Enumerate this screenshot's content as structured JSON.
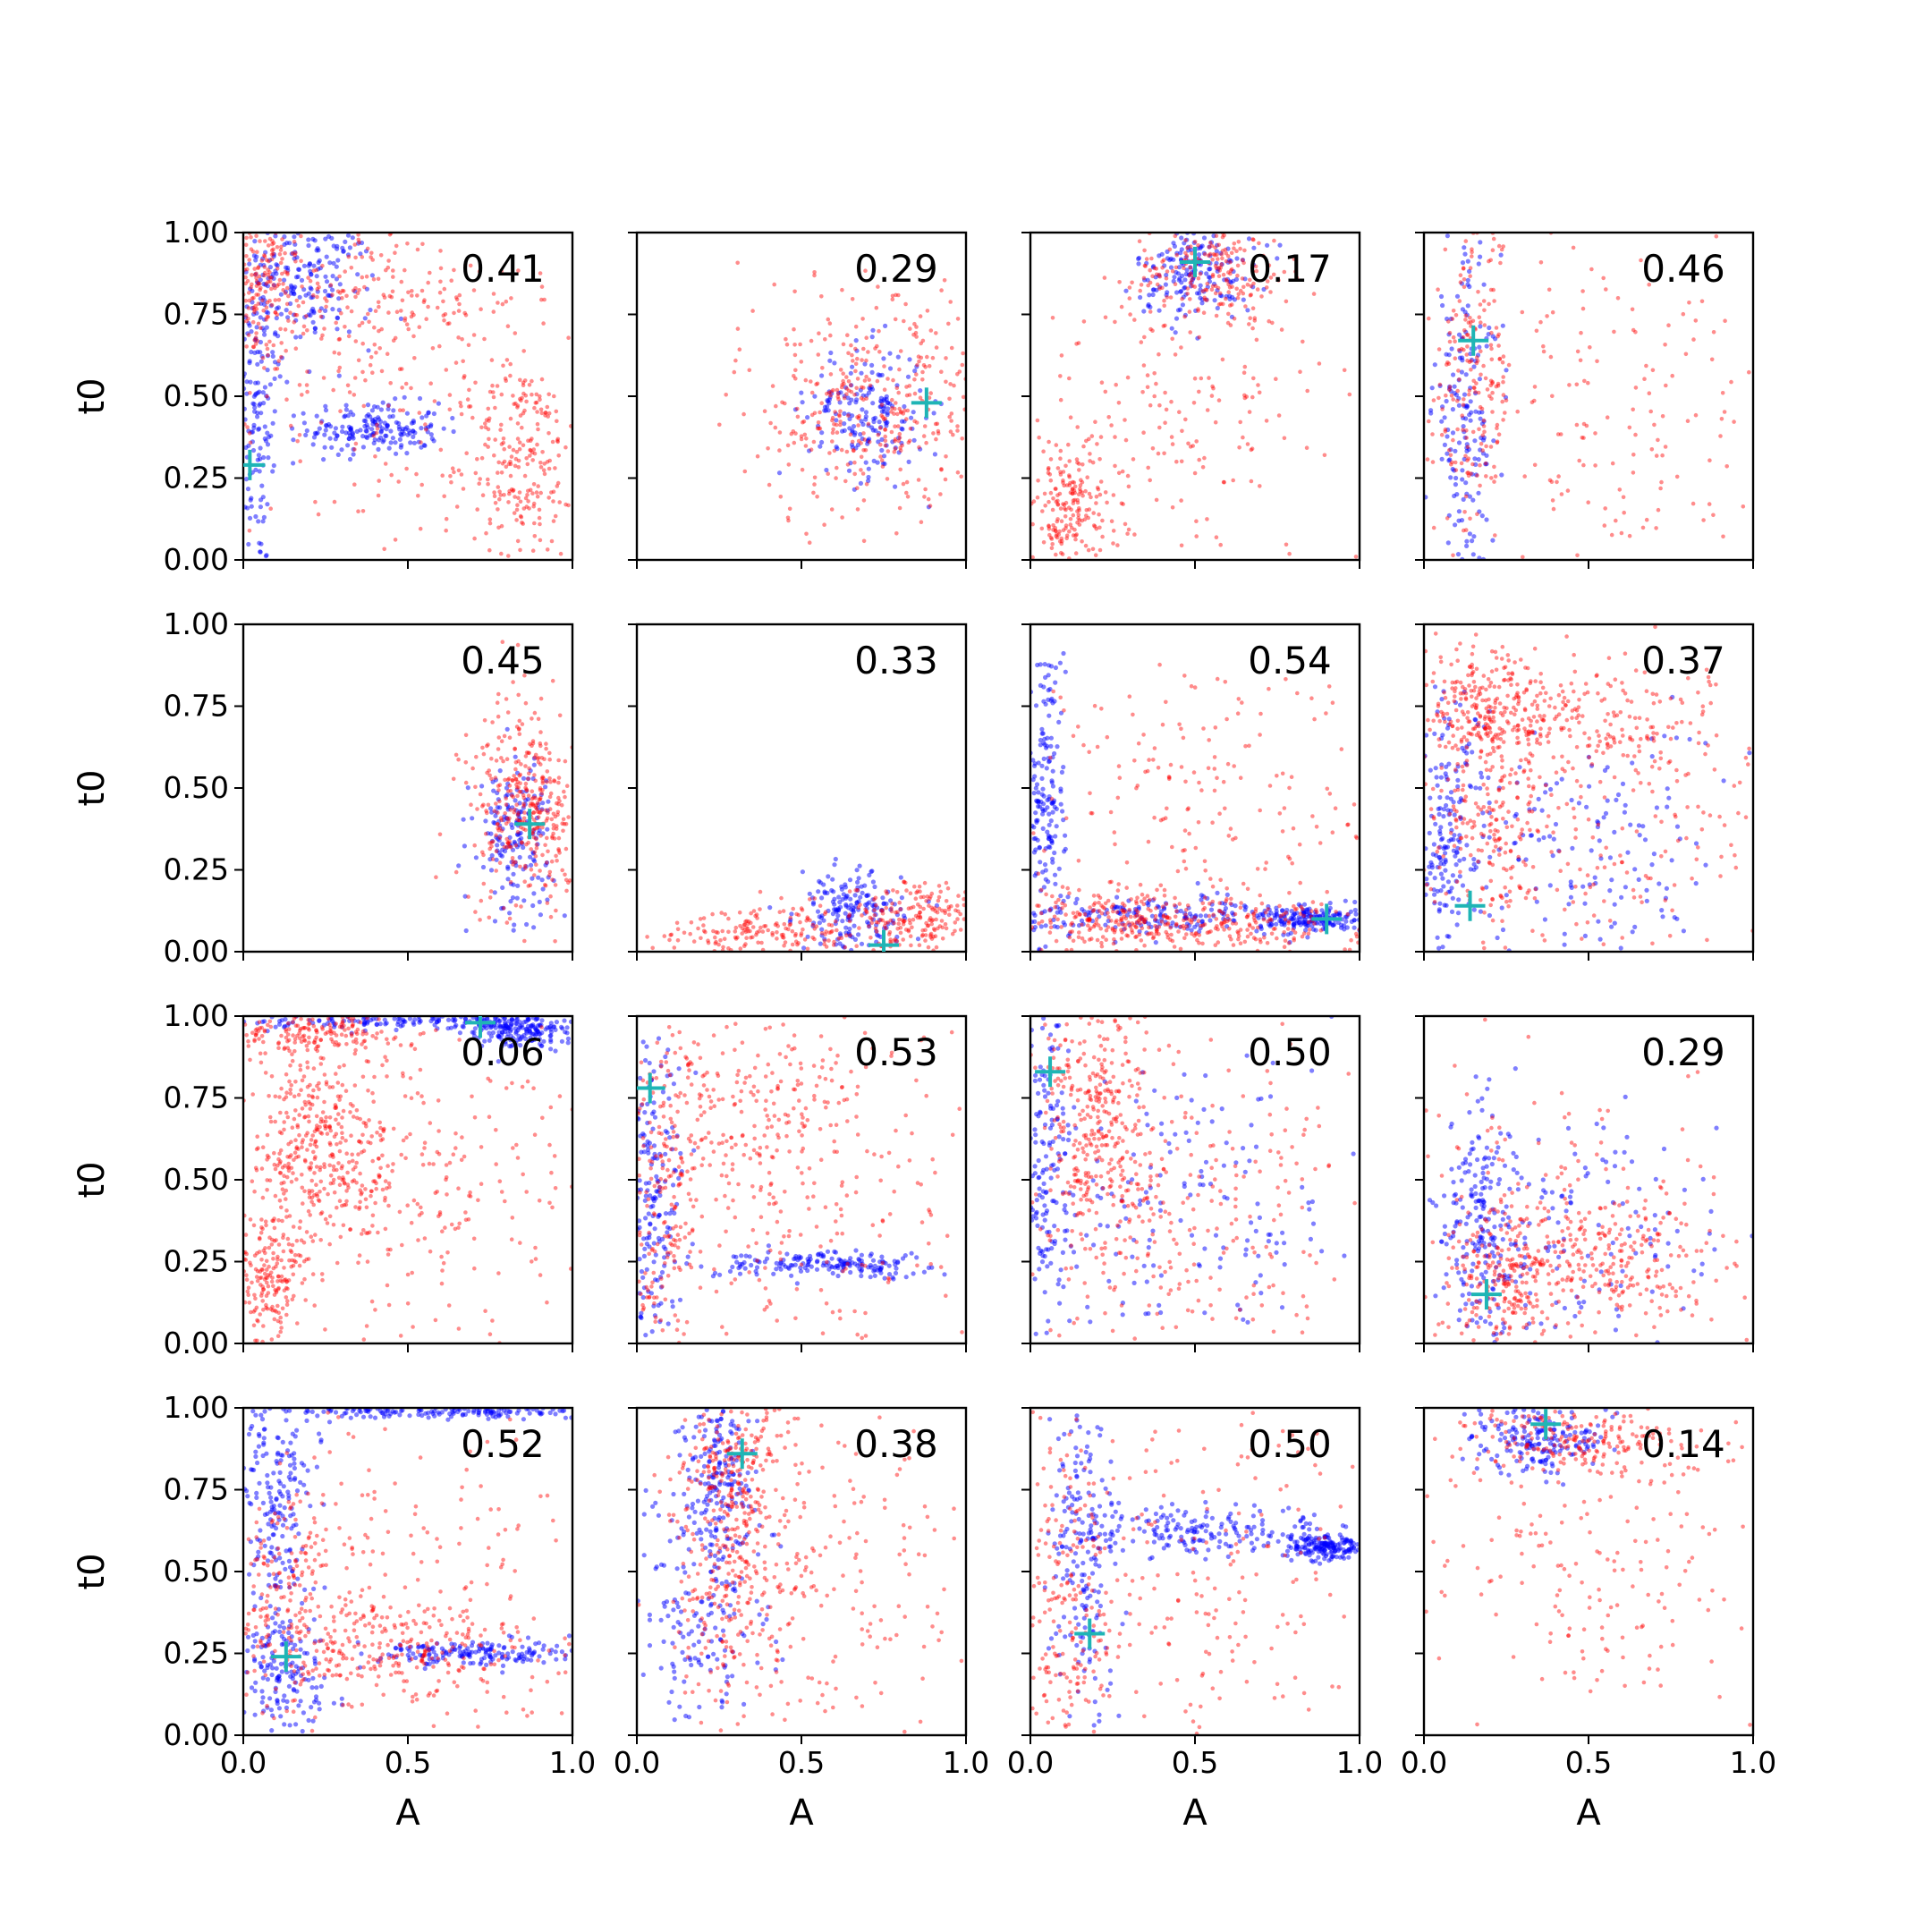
{
  "chart_data": {
    "type": "scatter",
    "layout": {
      "rows": 4,
      "cols": 4
    },
    "xlabel": "A",
    "ylabel": "t0",
    "xlim": [
      0,
      1
    ],
    "ylim": [
      0,
      1
    ],
    "xticks": [
      {
        "value": 0.0,
        "label": "0.0"
      },
      {
        "value": 0.5,
        "label": "0.5"
      },
      {
        "value": 1.0,
        "label": "1.0"
      }
    ],
    "yticks": [
      {
        "value": 0.0,
        "label": "0.00"
      },
      {
        "value": 0.25,
        "label": "0.25"
      },
      {
        "value": 0.5,
        "label": "0.50"
      },
      {
        "value": 0.75,
        "label": "0.75"
      },
      {
        "value": 1.0,
        "label": "1.00"
      }
    ],
    "colors": {
      "red_series": "#ff0000",
      "blue_series": "#0000ff",
      "marker": "#1fb5b5"
    },
    "panels": [
      {
        "annotation": "0.41",
        "marker": [
          0.02,
          0.29
        ],
        "red": [
          [
            0.05,
            0.85,
            0.06,
            0.12
          ],
          [
            0.35,
            0.8,
            0.25,
            0.12
          ],
          [
            0.85,
            0.3,
            0.08,
            0.15
          ],
          [
            0.5,
            0.5,
            0.3,
            0.3
          ]
        ],
        "blue": [
          [
            0.04,
            0.5,
            0.04,
            0.28
          ],
          [
            0.4,
            0.4,
            0.1,
            0.04
          ],
          [
            0.2,
            0.85,
            0.1,
            0.1
          ]
        ]
      },
      {
        "annotation": "0.29",
        "marker": [
          0.88,
          0.48
        ],
        "red": [
          [
            0.7,
            0.45,
            0.15,
            0.15
          ],
          [
            0.75,
            0.5,
            0.22,
            0.22
          ]
        ],
        "blue": [
          [
            0.7,
            0.45,
            0.09,
            0.1
          ]
        ]
      },
      {
        "annotation": "0.17",
        "marker": [
          0.5,
          0.91
        ],
        "red": [
          [
            0.55,
            0.88,
            0.12,
            0.08
          ],
          [
            0.45,
            0.45,
            0.3,
            0.25
          ],
          [
            0.12,
            0.15,
            0.08,
            0.1
          ]
        ],
        "blue": [
          [
            0.5,
            0.88,
            0.09,
            0.07
          ]
        ]
      },
      {
        "annotation": "0.46",
        "marker": [
          0.15,
          0.67
        ],
        "red": [
          [
            0.15,
            0.55,
            0.06,
            0.25
          ],
          [
            0.55,
            0.4,
            0.3,
            0.3
          ]
        ],
        "blue": [
          [
            0.13,
            0.45,
            0.05,
            0.25
          ]
        ]
      },
      {
        "annotation": "0.45",
        "marker": [
          0.87,
          0.39
        ],
        "red": [
          [
            0.9,
            0.42,
            0.07,
            0.12
          ],
          [
            0.85,
            0.45,
            0.1,
            0.18
          ]
        ],
        "blue": [
          [
            0.82,
            0.36,
            0.06,
            0.12
          ]
        ]
      },
      {
        "annotation": "0.33",
        "marker": [
          0.75,
          0.02
        ],
        "red": [
          [
            0.85,
            0.1,
            0.1,
            0.06
          ],
          [
            0.4,
            0.06,
            0.18,
            0.04
          ]
        ],
        "blue": [
          [
            0.65,
            0.12,
            0.08,
            0.06
          ]
        ]
      },
      {
        "annotation": "0.54",
        "marker": [
          0.9,
          0.1
        ],
        "red": [
          [
            0.25,
            0.1,
            0.15,
            0.05
          ],
          [
            0.6,
            0.09,
            0.25,
            0.04
          ],
          [
            0.5,
            0.45,
            0.3,
            0.25
          ]
        ],
        "blue": [
          [
            0.35,
            0.11,
            0.22,
            0.03
          ],
          [
            0.85,
            0.1,
            0.08,
            0.02
          ],
          [
            0.05,
            0.5,
            0.03,
            0.25
          ]
        ]
      },
      {
        "annotation": "0.37",
        "marker": [
          0.14,
          0.14
        ],
        "red": [
          [
            0.2,
            0.75,
            0.1,
            0.1
          ],
          [
            0.45,
            0.7,
            0.25,
            0.08
          ],
          [
            0.2,
            0.4,
            0.1,
            0.15
          ],
          [
            0.6,
            0.4,
            0.25,
            0.3
          ]
        ],
        "blue": [
          [
            0.07,
            0.35,
            0.06,
            0.22
          ],
          [
            0.4,
            0.3,
            0.25,
            0.2
          ]
        ]
      },
      {
        "annotation": "0.06",
        "marker": [
          0.72,
          0.98
        ],
        "red": [
          [
            0.2,
            0.95,
            0.15,
            0.04
          ],
          [
            0.25,
            0.7,
            0.12,
            0.12
          ],
          [
            0.25,
            0.5,
            0.12,
            0.1
          ],
          [
            0.08,
            0.2,
            0.06,
            0.1
          ],
          [
            0.6,
            0.45,
            0.25,
            0.25
          ]
        ],
        "blue": [
          [
            0.55,
            0.985,
            0.25,
            0.012
          ],
          [
            0.85,
            0.96,
            0.08,
            0.03
          ]
        ]
      },
      {
        "annotation": "0.53",
        "marker": [
          0.04,
          0.78
        ],
        "red": [
          [
            0.08,
            0.4,
            0.06,
            0.25
          ],
          [
            0.35,
            0.75,
            0.18,
            0.12
          ],
          [
            0.55,
            0.4,
            0.28,
            0.28
          ]
        ],
        "blue": [
          [
            0.05,
            0.4,
            0.04,
            0.25
          ],
          [
            0.6,
            0.24,
            0.2,
            0.02
          ]
        ]
      },
      {
        "annotation": "0.50",
        "marker": [
          0.06,
          0.83
        ],
        "red": [
          [
            0.2,
            0.75,
            0.08,
            0.15
          ],
          [
            0.25,
            0.5,
            0.12,
            0.2
          ],
          [
            0.6,
            0.4,
            0.25,
            0.3
          ]
        ],
        "blue": [
          [
            0.04,
            0.5,
            0.04,
            0.28
          ],
          [
            0.5,
            0.4,
            0.3,
            0.25
          ]
        ]
      },
      {
        "annotation": "0.29",
        "marker": [
          0.19,
          0.15
        ],
        "red": [
          [
            0.25,
            0.2,
            0.08,
            0.12
          ],
          [
            0.55,
            0.25,
            0.18,
            0.08
          ],
          [
            0.4,
            0.3,
            0.28,
            0.25
          ]
        ],
        "blue": [
          [
            0.17,
            0.35,
            0.05,
            0.22
          ],
          [
            0.45,
            0.3,
            0.25,
            0.2
          ]
        ]
      },
      {
        "annotation": "0.52",
        "marker": [
          0.13,
          0.24
        ],
        "red": [
          [
            0.15,
            0.4,
            0.1,
            0.18
          ],
          [
            0.45,
            0.27,
            0.2,
            0.08
          ],
          [
            0.5,
            0.4,
            0.3,
            0.3
          ]
        ],
        "blue": [
          [
            0.12,
            0.2,
            0.07,
            0.12
          ],
          [
            0.7,
            0.25,
            0.18,
            0.02
          ],
          [
            0.1,
            0.75,
            0.06,
            0.15
          ],
          [
            0.6,
            0.99,
            0.25,
            0.01
          ]
        ]
      },
      {
        "annotation": "0.38",
        "marker": [
          0.32,
          0.86
        ],
        "red": [
          [
            0.3,
            0.8,
            0.08,
            0.12
          ],
          [
            0.55,
            0.5,
            0.25,
            0.3
          ],
          [
            0.3,
            0.45,
            0.12,
            0.2
          ]
        ],
        "blue": [
          [
            0.25,
            0.8,
            0.06,
            0.15
          ],
          [
            0.2,
            0.35,
            0.1,
            0.2
          ]
        ]
      },
      {
        "annotation": "0.50",
        "marker": [
          0.18,
          0.31
        ],
        "red": [
          [
            0.12,
            0.35,
            0.07,
            0.25
          ],
          [
            0.5,
            0.5,
            0.3,
            0.28
          ]
        ],
        "blue": [
          [
            0.16,
            0.55,
            0.05,
            0.25
          ],
          [
            0.55,
            0.62,
            0.2,
            0.04
          ],
          [
            0.9,
            0.58,
            0.06,
            0.02
          ]
        ]
      },
      {
        "annotation": "0.14",
        "marker": [
          0.37,
          0.95
        ],
        "red": [
          [
            0.45,
            0.9,
            0.18,
            0.06
          ],
          [
            0.5,
            0.55,
            0.28,
            0.25
          ]
        ],
        "blue": [
          [
            0.35,
            0.9,
            0.09,
            0.05
          ]
        ]
      }
    ]
  }
}
